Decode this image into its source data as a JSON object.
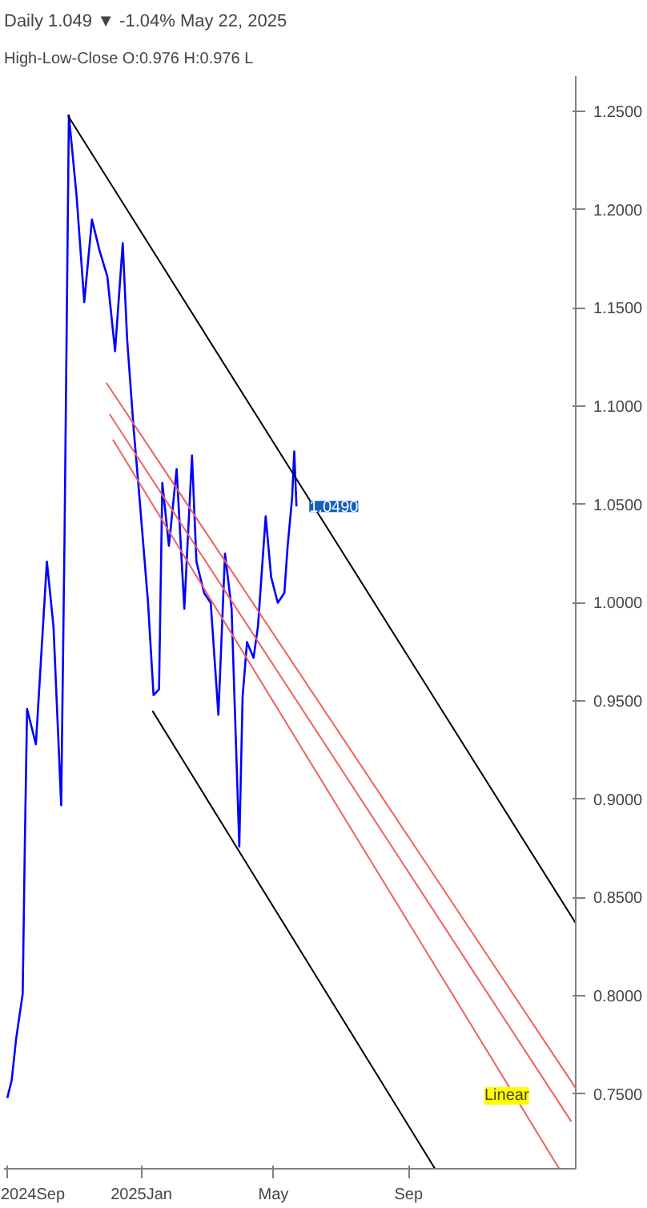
{
  "chart_data": {
    "type": "line",
    "title": "Daily   1.049 ▼ -1.04%   May 22, 2025",
    "subtitle": "High-Low-Close  O:0.976  H:0.976  L",
    "xlim": [
      "2024-08-29",
      "2026-01-31"
    ],
    "ylim": [
      0.712,
      1.268
    ],
    "xticks": [
      {
        "value": "2024-09-01",
        "label": "2024Sep"
      },
      {
        "value": "2025-01-01",
        "label": "2025Jan"
      },
      {
        "value": "2025-05-01",
        "label": "May"
      },
      {
        "value": "2025-09-01",
        "label": "Sep"
      }
    ],
    "yticks": [
      {
        "value": 0.75,
        "label": "0.7500"
      },
      {
        "value": 0.8,
        "label": "0.8000"
      },
      {
        "value": 0.85,
        "label": "0.8500"
      },
      {
        "value": 0.9,
        "label": "0.9000"
      },
      {
        "value": 0.95,
        "label": "0.9500"
      },
      {
        "value": 1.0,
        "label": "1.0000"
      },
      {
        "value": 1.05,
        "label": "1.0500"
      },
      {
        "value": 1.1,
        "label": "1.1000"
      },
      {
        "value": 1.15,
        "label": "1.1500"
      },
      {
        "value": 1.2,
        "label": "1.2000"
      },
      {
        "value": 1.25,
        "label": "1.2500"
      }
    ],
    "grid": false,
    "series": [
      {
        "color": "#0000ff",
        "x": [
          "2024-09-01",
          "2024-09-05",
          "2024-09-09",
          "2024-09-15",
          "2024-09-17",
          "2024-09-19",
          "2024-09-27",
          "2024-10-07",
          "2024-10-13",
          "2024-10-20",
          "2024-10-23",
          "2024-10-27",
          "2024-11-03",
          "2024-11-10",
          "2024-11-17",
          "2024-11-24",
          "2024-12-01",
          "2024-12-08",
          "2024-12-15",
          "2024-12-19",
          "2024-12-25",
          "2024-12-30",
          "2025-01-07",
          "2025-01-12",
          "2025-01-17",
          "2025-01-20",
          "2025-01-26",
          "2025-02-02",
          "2025-02-09",
          "2025-02-16",
          "2025-02-20",
          "2025-02-27",
          "2025-03-05",
          "2025-03-12",
          "2025-03-18",
          "2025-03-24",
          "2025-03-31",
          "2025-04-03",
          "2025-04-07",
          "2025-04-13",
          "2025-04-17",
          "2025-04-24",
          "2025-04-29",
          "2025-05-05",
          "2025-05-11",
          "2025-05-14",
          "2025-05-18",
          "2025-05-20",
          "2025-05-22"
        ],
        "values": [
          0.748,
          0.757,
          0.778,
          0.801,
          0.879,
          0.946,
          0.928,
          1.021,
          0.988,
          0.897,
          1.031,
          1.248,
          1.207,
          1.153,
          1.195,
          1.179,
          1.166,
          1.128,
          1.183,
          1.134,
          1.088,
          1.055,
          1.0,
          0.953,
          0.956,
          1.061,
          1.029,
          1.068,
          0.997,
          1.075,
          1.021,
          1.005,
          1.0,
          0.943,
          1.025,
          0.997,
          0.876,
          0.952,
          0.98,
          0.972,
          0.988,
          1.044,
          1.013,
          1.0,
          1.005,
          1.029,
          1.053,
          1.077,
          1.049
        ]
      },
      {
        "color": "#000000",
        "x": [
          "2024-10-26",
          "2026-01-31"
        ],
        "values": [
          1.248,
          0.837
        ]
      },
      {
        "color": "#000000",
        "x": [
          "2025-01-11",
          "2025-09-25"
        ],
        "values": [
          0.945,
          0.712
        ]
      },
      {
        "color": "#f06060",
        "x": [
          "2024-11-30",
          "2026-01-31"
        ],
        "values": [
          1.112,
          0.753
        ]
      },
      {
        "color": "#f06060",
        "x": [
          "2024-12-03",
          "2026-01-27"
        ],
        "values": [
          1.096,
          0.736
        ]
      },
      {
        "color": "#f06060",
        "x": [
          "2024-12-06",
          "2026-01-16"
        ],
        "values": [
          1.083,
          0.712
        ]
      }
    ],
    "annotations": [
      {
        "text": "1.0490",
        "x": "2025-05-22",
        "y": 1.049
      },
      "Linear"
    ]
  }
}
